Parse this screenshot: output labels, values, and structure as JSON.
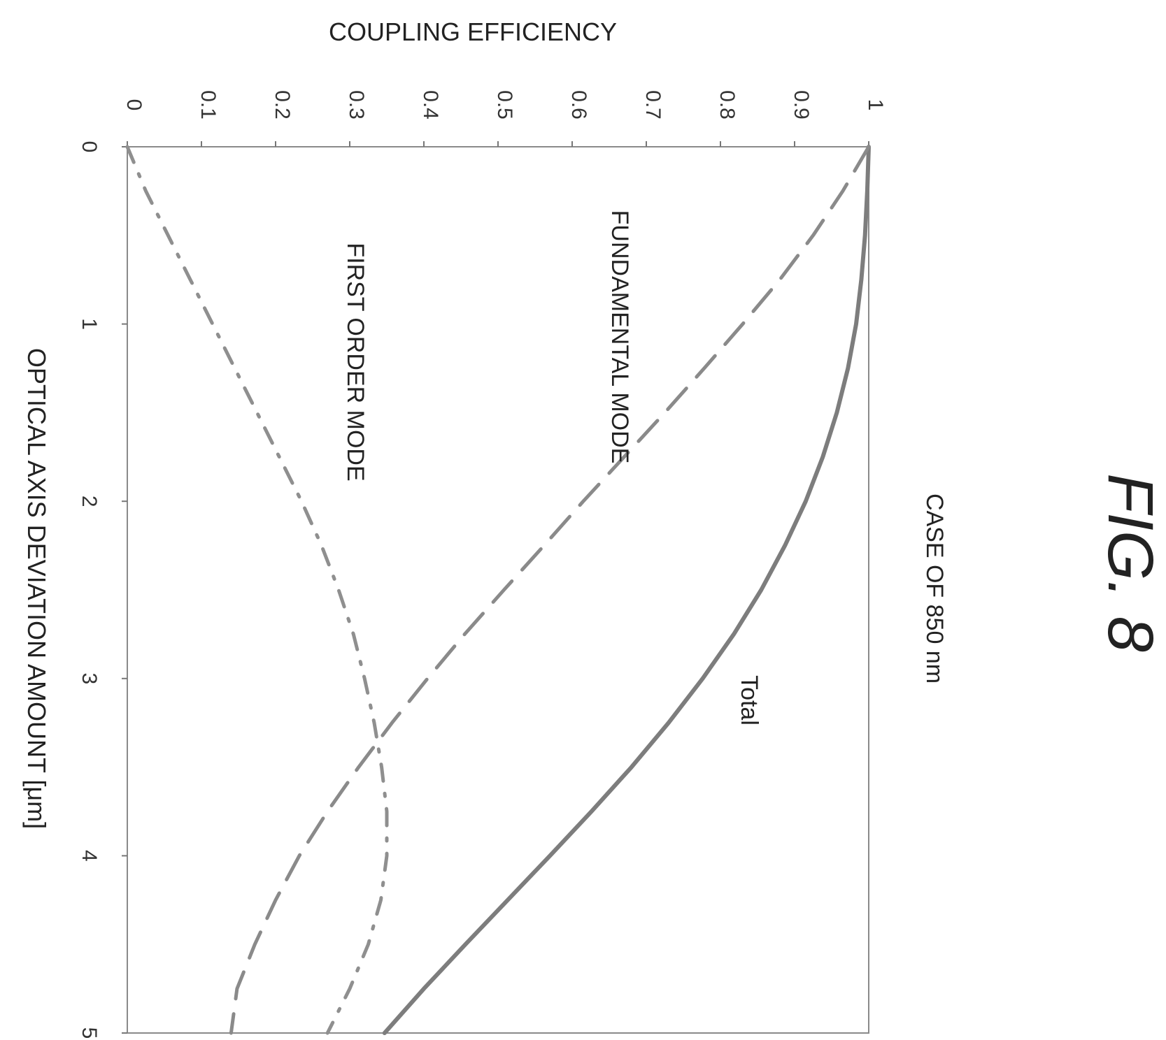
{
  "figure": {
    "title": "FIG. 8",
    "case_label": "CASE OF 850 nm"
  },
  "chart_data": {
    "type": "line",
    "title": "",
    "xlabel": "OPTICAL AXIS DEVIATION AMOUNT [μm]",
    "ylabel": "COUPLING EFFICIENCY",
    "xlim": [
      0,
      5
    ],
    "ylim": [
      0,
      1
    ],
    "x_ticks": [
      "0",
      "1",
      "2",
      "3",
      "4",
      "5"
    ],
    "y_ticks": [
      "0",
      "0.1",
      "0.2",
      "0.3",
      "0.4",
      "0.5",
      "0.6",
      "0.7",
      "0.8",
      "0.9",
      "1"
    ],
    "grid": false,
    "legend": "none",
    "x": [
      0,
      0.25,
      0.5,
      0.75,
      1,
      1.25,
      1.5,
      1.75,
      2,
      2.25,
      2.5,
      2.75,
      3,
      3.25,
      3.5,
      3.75,
      4,
      4.25,
      4.5,
      4.75,
      5
    ],
    "series": [
      {
        "name": "Total",
        "style": "solid",
        "values": [
          1.0,
          0.998,
          0.995,
          0.99,
          0.983,
          0.972,
          0.957,
          0.938,
          0.915,
          0.887,
          0.855,
          0.818,
          0.776,
          0.73,
          0.68,
          0.626,
          0.57,
          0.513,
          0.456,
          0.4,
          0.347
        ]
      },
      {
        "name": "FUNDAMENTAL MODE",
        "style": "dashed",
        "values": [
          1.0,
          0.965,
          0.925,
          0.88,
          0.83,
          0.778,
          0.725,
          0.67,
          0.615,
          0.562,
          0.508,
          0.455,
          0.405,
          0.357,
          0.312,
          0.27,
          0.232,
          0.2,
          0.172,
          0.148,
          0.14
        ]
      },
      {
        "name": "FIRST ORDER MODE",
        "style": "dash-dot",
        "values": [
          0.0,
          0.025,
          0.055,
          0.085,
          0.115,
          0.145,
          0.175,
          0.205,
          0.235,
          0.262,
          0.285,
          0.305,
          0.32,
          0.333,
          0.343,
          0.35,
          0.35,
          0.342,
          0.325,
          0.3,
          0.27
        ]
      }
    ],
    "annotations": [
      "Total",
      "FUNDAMENTAL MODE",
      "FIRST ORDER MODE"
    ]
  }
}
